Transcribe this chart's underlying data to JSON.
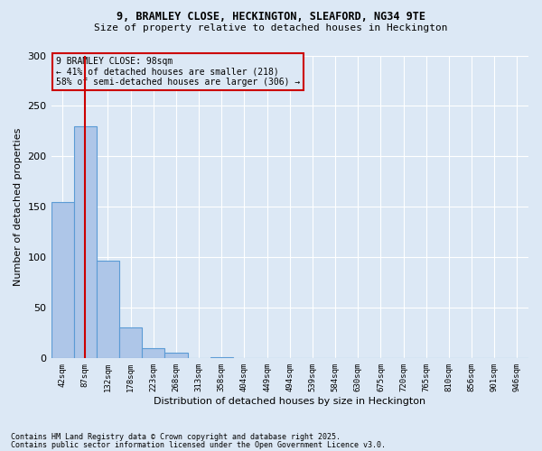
{
  "title_line1": "9, BRAMLEY CLOSE, HECKINGTON, SLEAFORD, NG34 9TE",
  "title_line2": "Size of property relative to detached houses in Heckington",
  "xlabel": "Distribution of detached houses by size in Heckington",
  "ylabel": "Number of detached properties",
  "bin_labels": [
    "42sqm",
    "87sqm",
    "132sqm",
    "178sqm",
    "223sqm",
    "268sqm",
    "313sqm",
    "358sqm",
    "404sqm",
    "449sqm",
    "494sqm",
    "539sqm",
    "584sqm",
    "630sqm",
    "675sqm",
    "720sqm",
    "765sqm",
    "810sqm",
    "856sqm",
    "901sqm",
    "946sqm"
  ],
  "bar_heights": [
    155,
    230,
    97,
    31,
    10,
    6,
    0,
    1,
    0,
    0,
    0,
    0,
    0,
    0,
    0,
    0,
    0,
    0,
    0,
    0,
    0
  ],
  "bar_color": "#aec6e8",
  "bar_edge_color": "#5b9bd5",
  "bg_color": "#dce8f5",
  "grid_color": "#ffffff",
  "vline_x": 1,
  "vline_color": "#cc0000",
  "annotation_text": "9 BRAMLEY CLOSE: 98sqm\n← 41% of detached houses are smaller (218)\n58% of semi-detached houses are larger (306) →",
  "annotation_box_color": "#cc0000",
  "footnote1": "Contains HM Land Registry data © Crown copyright and database right 2025.",
  "footnote2": "Contains public sector information licensed under the Open Government Licence v3.0.",
  "ylim": [
    0,
    300
  ],
  "yticks": [
    0,
    50,
    100,
    150,
    200,
    250,
    300
  ]
}
